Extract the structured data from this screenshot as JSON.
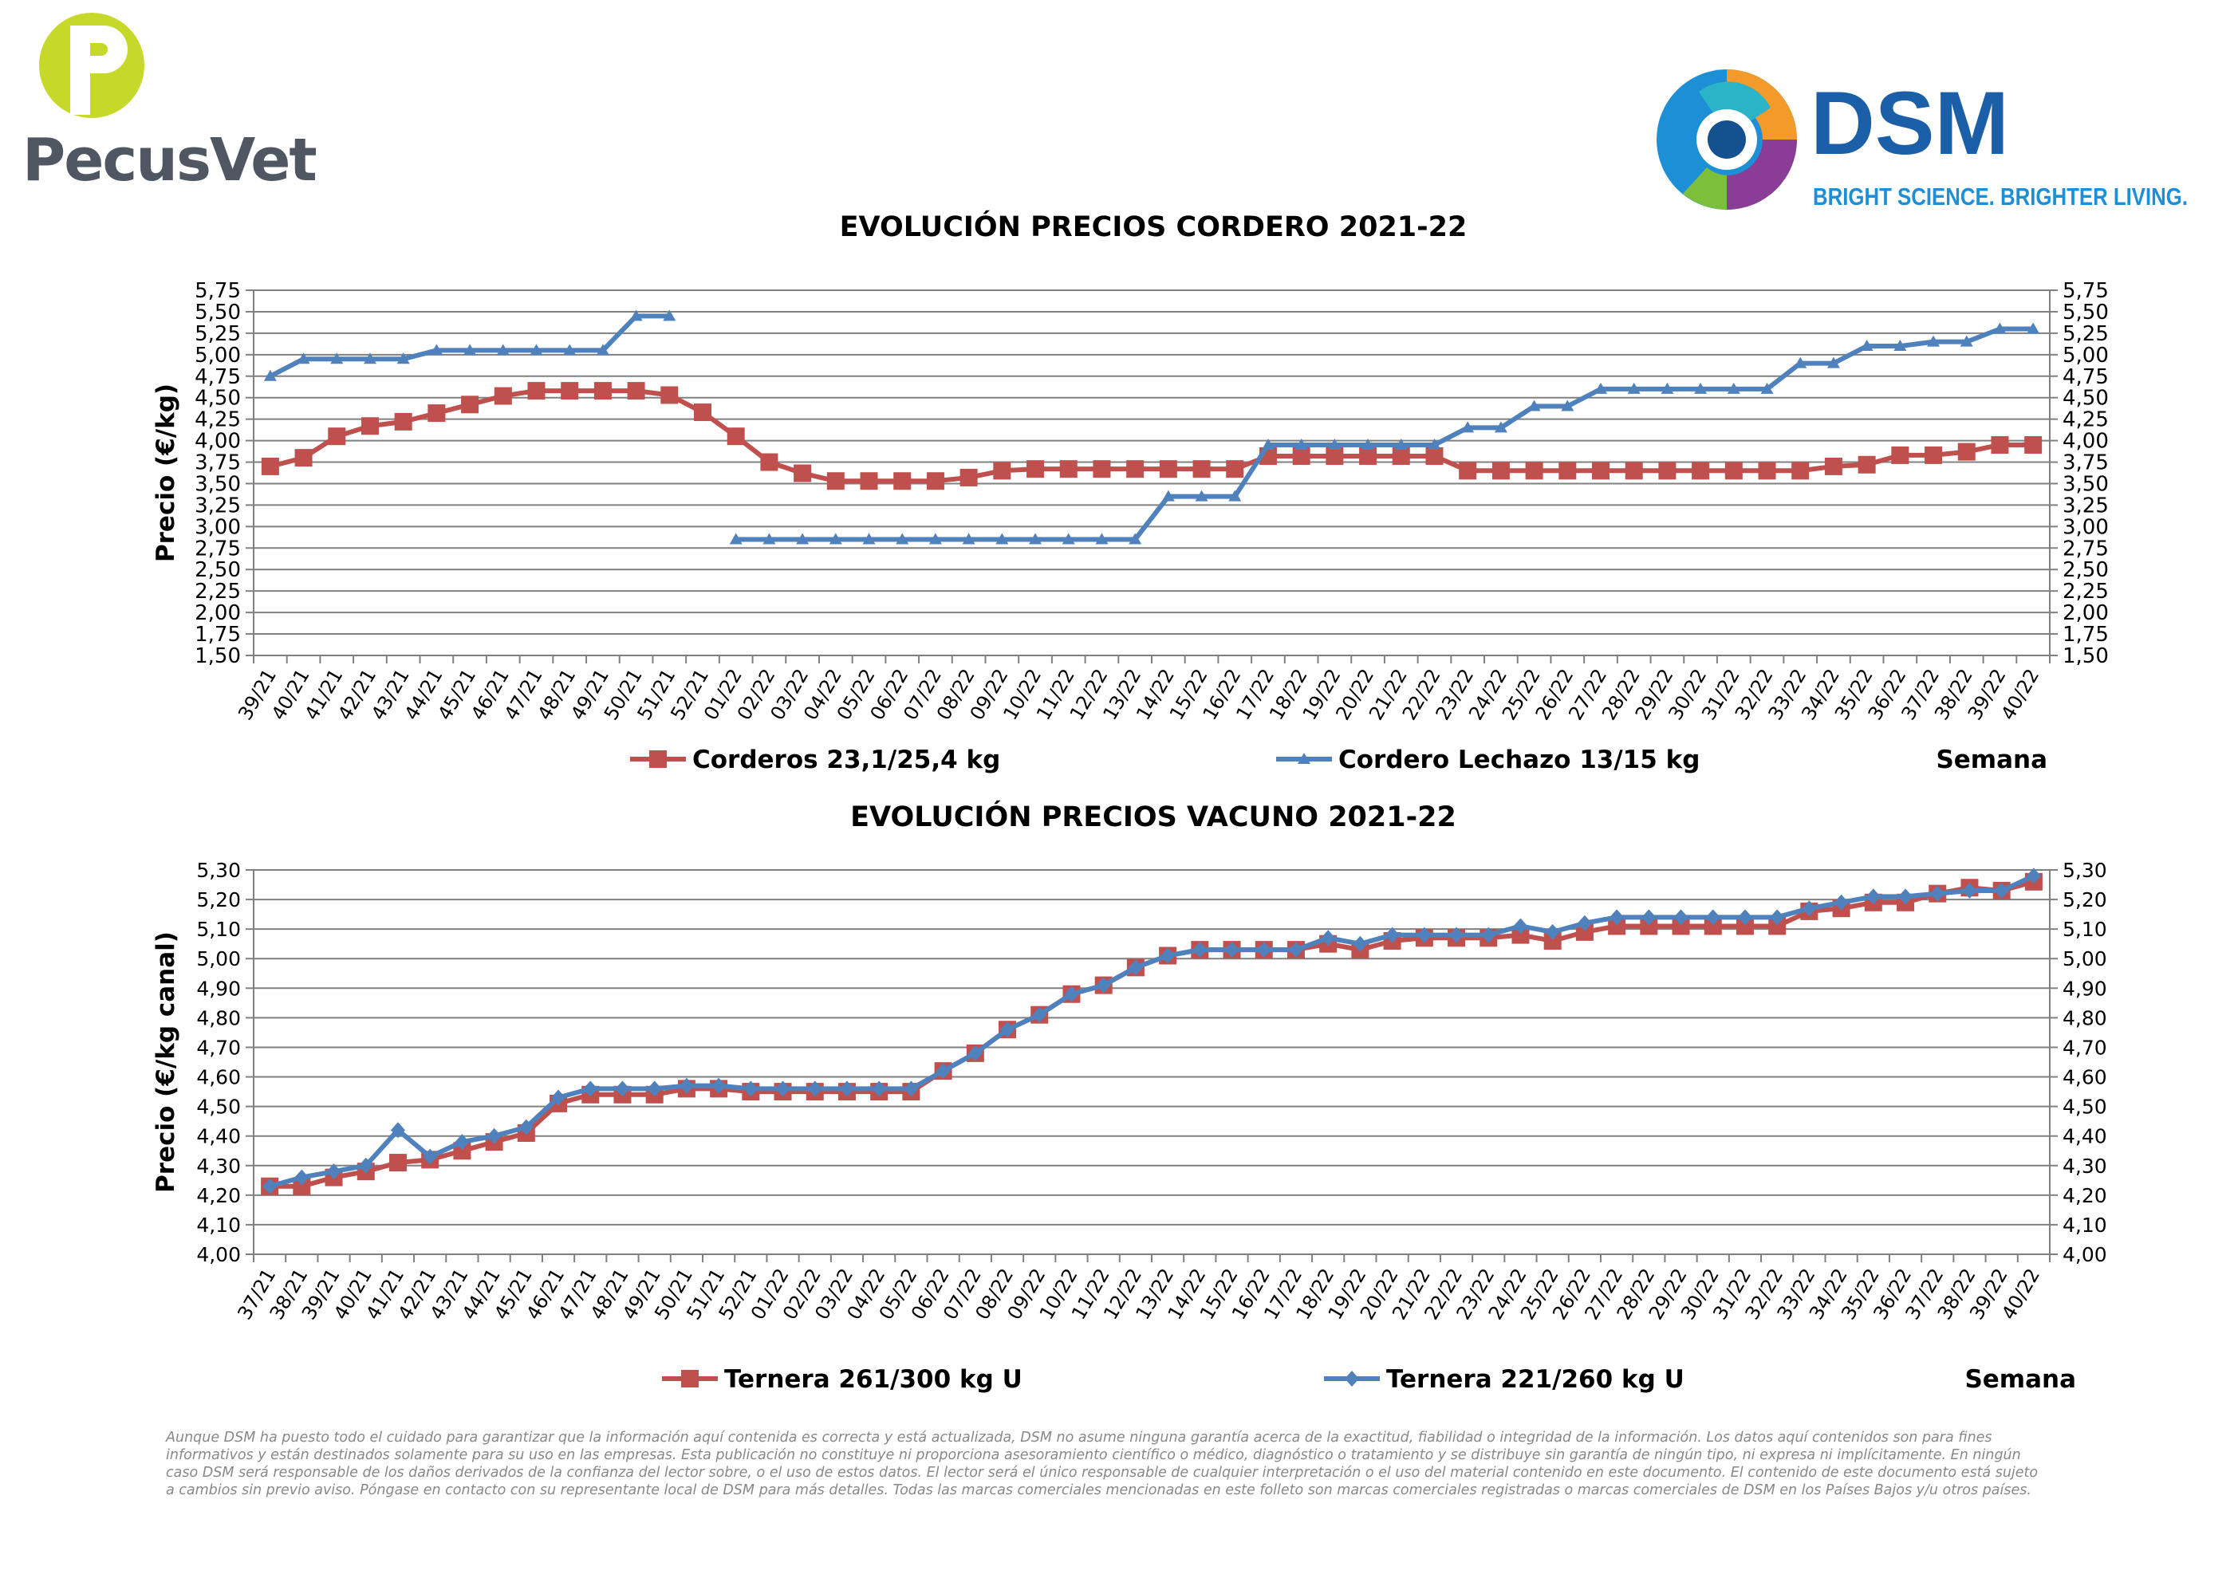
{
  "brand": {
    "pecus_name": "PecusVet",
    "dsm_name": "DSM",
    "dsm_tagline": "BRIGHT SCIENCE. BRIGHTER LIVING."
  },
  "colors": {
    "red_series": "#c0504d",
    "blue_series": "#4f81bd",
    "grid": "#808080"
  },
  "disclaimer": "Aunque DSM ha puesto todo el cuidado para garantizar que la información aquí contenida es correcta y está actualizada, DSM no asume ninguna garantía acerca de la exactitud, fiabilidad o integridad de la información. Los datos aquí contenidos son para fines informativos y están destinados solamente para su uso en las empresas. Esta publicación no constituye ni proporciona asesoramiento científico o médico, diagnóstico o tratamiento y se distribuye sin garantía de ningún tipo, ni expresa ni implícitamente. En ningún caso DSM será responsable de los daños derivados de la confianza del lector sobre, o el uso de estos datos. El lector será el único responsable de cualquier interpretación o el uso del material contenido en este documento. El contenido de este documento está sujeto a cambios sin previo aviso. Póngase en contacto con su representante local de DSM para más detalles. Todas las marcas comerciales mencionadas en este folleto son marcas comerciales registradas o marcas comerciales de DSM en los Países Bajos y/u otros países.",
  "chart_data": [
    {
      "type": "line",
      "title": "EVOLUCIÓN PRECIOS CORDERO 2021-22",
      "ylabel": "Precio (€/kg)",
      "xlabel": "Semana",
      "ylim": [
        1.5,
        5.75
      ],
      "yticks": [
        "1,50",
        "1,75",
        "2,00",
        "2,25",
        "2,50",
        "2,75",
        "3,00",
        "3,25",
        "3,50",
        "3,75",
        "4,00",
        "4,25",
        "4,50",
        "4,75",
        "5,00",
        "5,25",
        "5,50",
        "5,75"
      ],
      "grid": true,
      "legend_position": "bottom",
      "categories": [
        "39/21",
        "40/21",
        "41/21",
        "42/21",
        "43/21",
        "44/21",
        "45/21",
        "46/21",
        "47/21",
        "48/21",
        "49/21",
        "50/21",
        "51/21",
        "52/21",
        "01/22",
        "02/22",
        "03/22",
        "04/22",
        "05/22",
        "06/22",
        "07/22",
        "08/22",
        "09/22",
        "10/22",
        "11/22",
        "12/22",
        "13/22",
        "14/22",
        "15/22",
        "16/22",
        "17/22",
        "18/22",
        "19/22",
        "20/22",
        "21/22",
        "22/22",
        "23/22",
        "24/22",
        "25/22",
        "26/22",
        "27/22",
        "28/22",
        "29/22",
        "30/22",
        "31/22",
        "32/22",
        "33/22",
        "34/22",
        "35/22",
        "36/22",
        "37/22",
        "38/22",
        "39/22",
        "40/22"
      ],
      "series": [
        {
          "name": "Corderos 23,1/25,4 kg",
          "color": "#c0504d",
          "marker": "square",
          "values": [
            3.7,
            3.8,
            4.05,
            4.17,
            4.22,
            4.32,
            4.42,
            4.52,
            4.58,
            4.58,
            4.58,
            4.58,
            4.53,
            4.33,
            4.05,
            3.75,
            3.62,
            3.53,
            3.53,
            3.53,
            3.53,
            3.57,
            3.65,
            3.67,
            3.67,
            3.67,
            3.67,
            3.67,
            3.67,
            3.67,
            3.82,
            3.82,
            3.82,
            3.82,
            3.82,
            3.82,
            3.65,
            3.65,
            3.65,
            3.65,
            3.65,
            3.65,
            3.65,
            3.65,
            3.65,
            3.65,
            3.65,
            3.7,
            3.72,
            3.83,
            3.83,
            3.87,
            3.95,
            3.95
          ]
        },
        {
          "name": "Cordero Lechazo 13/15 kg",
          "color": "#4f81bd",
          "marker": "triangle",
          "values": [
            4.75,
            4.95,
            4.95,
            4.95,
            4.95,
            5.05,
            5.05,
            5.05,
            5.05,
            5.05,
            5.05,
            5.45,
            5.45,
            null,
            2.85,
            2.85,
            2.85,
            2.85,
            2.85,
            2.85,
            2.85,
            2.85,
            2.85,
            2.85,
            2.85,
            2.85,
            2.85,
            3.35,
            3.35,
            3.35,
            3.95,
            3.95,
            3.95,
            3.95,
            3.95,
            3.95,
            4.15,
            4.15,
            4.4,
            4.4,
            4.6,
            4.6,
            4.6,
            4.6,
            4.6,
            4.6,
            4.9,
            4.9,
            5.1,
            5.1,
            5.15,
            5.15,
            5.3,
            5.3
          ]
        }
      ]
    },
    {
      "type": "line",
      "title": "EVOLUCIÓN PRECIOS VACUNO 2021-22",
      "ylabel": "Precio (€/kg canal)",
      "xlabel": "Semana",
      "ylim": [
        4.0,
        5.3
      ],
      "yticks": [
        "4,00",
        "4,10",
        "4,20",
        "4,30",
        "4,40",
        "4,50",
        "4,60",
        "4,70",
        "4,80",
        "4,90",
        "5,00",
        "5,10",
        "5,20",
        "5,30"
      ],
      "grid": true,
      "legend_position": "bottom",
      "categories": [
        "37/21",
        "38/21",
        "39/21",
        "40/21",
        "41/21",
        "42/21",
        "43/21",
        "44/21",
        "45/21",
        "46/21",
        "47/21",
        "48/21",
        "49/21",
        "50/21",
        "51/21",
        "52/21",
        "01/22",
        "02/22",
        "03/22",
        "04/22",
        "05/22",
        "06/22",
        "07/22",
        "08/22",
        "09/22",
        "10/22",
        "11/22",
        "12/22",
        "13/22",
        "14/22",
        "15/22",
        "16/22",
        "17/22",
        "18/22",
        "19/22",
        "20/22",
        "21/22",
        "22/22",
        "23/22",
        "24/22",
        "25/22",
        "26/22",
        "27/22",
        "28/22",
        "29/22",
        "30/22",
        "31/22",
        "32/22",
        "33/22",
        "34/22",
        "35/22",
        "36/22",
        "37/22",
        "38/22",
        "39/22",
        "40/22"
      ],
      "series": [
        {
          "name": "Ternera 261/300 kg U",
          "color": "#c0504d",
          "marker": "square",
          "values": [
            4.23,
            4.23,
            4.26,
            4.28,
            4.31,
            4.32,
            4.35,
            4.38,
            4.41,
            4.51,
            4.54,
            4.54,
            4.54,
            4.56,
            4.56,
            4.55,
            4.55,
            4.55,
            4.55,
            4.55,
            4.55,
            4.62,
            4.68,
            4.76,
            4.81,
            4.88,
            4.91,
            4.97,
            5.01,
            5.03,
            5.03,
            5.03,
            5.03,
            5.05,
            5.03,
            5.06,
            5.07,
            5.07,
            5.07,
            5.08,
            5.06,
            5.09,
            5.11,
            5.11,
            5.11,
            5.11,
            5.11,
            5.11,
            5.16,
            5.17,
            5.19,
            5.19,
            5.22,
            5.24,
            5.23,
            5.26
          ]
        },
        {
          "name": "Ternera 221/260 kg U",
          "color": "#4f81bd",
          "marker": "diamond",
          "values": [
            4.23,
            4.26,
            4.28,
            4.3,
            4.42,
            4.33,
            4.38,
            4.4,
            4.43,
            4.53,
            4.56,
            4.56,
            4.56,
            4.57,
            4.57,
            4.56,
            4.56,
            4.56,
            4.56,
            4.56,
            4.56,
            4.62,
            4.68,
            4.76,
            4.81,
            4.88,
            4.91,
            4.97,
            5.01,
            5.03,
            5.03,
            5.03,
            5.03,
            5.07,
            5.05,
            5.08,
            5.08,
            5.08,
            5.08,
            5.11,
            5.09,
            5.12,
            5.14,
            5.14,
            5.14,
            5.14,
            5.14,
            5.14,
            5.17,
            5.19,
            5.21,
            5.21,
            5.22,
            5.23,
            5.23,
            5.28
          ]
        }
      ]
    }
  ]
}
